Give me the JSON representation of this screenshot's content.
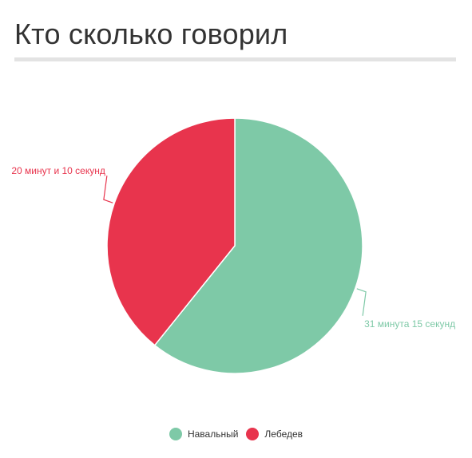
{
  "title": "Кто сколько говорил",
  "chart_data": {
    "type": "pie",
    "title": "Кто сколько говорил",
    "series": [
      {
        "name": "Навальный",
        "value": 31.25,
        "label": "31 минута 15 секунд",
        "color": "#7ec9a7"
      },
      {
        "name": "Лебедев",
        "value": 20.1667,
        "label": "20 минут и 10 секунд",
        "color": "#e8344d"
      }
    ],
    "legend_position": "bottom-center"
  }
}
